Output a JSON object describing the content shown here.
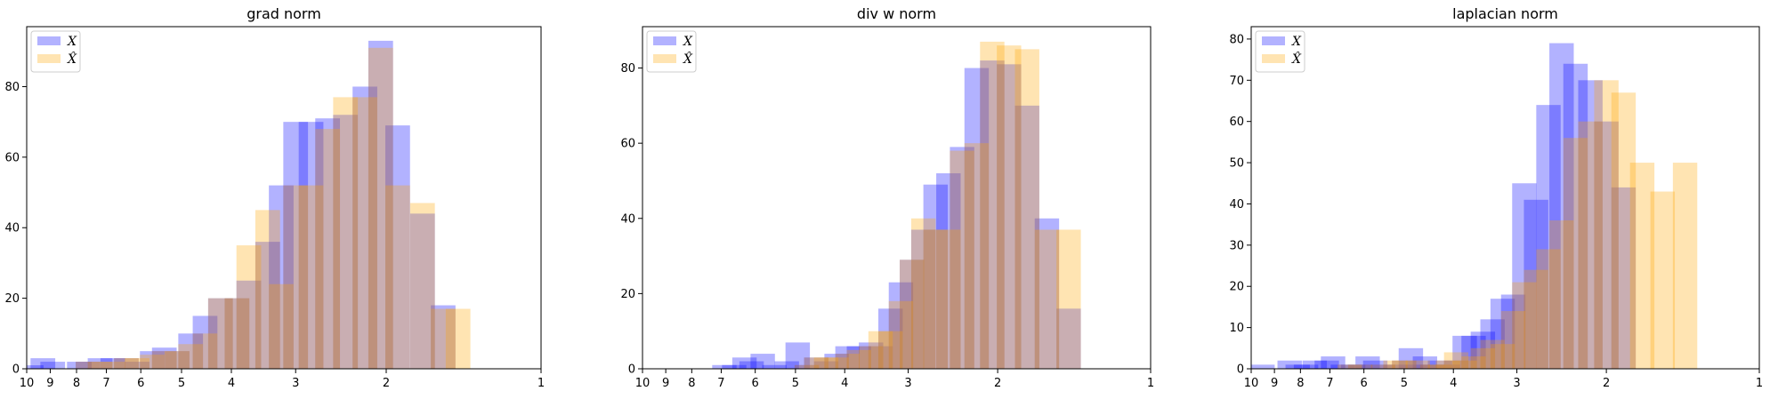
{
  "colors": {
    "x": "#0000ff",
    "xhat": "#ffa500",
    "x_opacity": 0.3,
    "xhat_opacity": 0.3
  },
  "chart_data": [
    {
      "type": "bar",
      "title": "grad norm",
      "xlabel": "",
      "ylabel": "",
      "x_scale": "log",
      "xlim": [
        10,
        1
      ],
      "xticks": [
        10,
        9,
        8,
        7,
        6,
        5,
        4,
        3,
        2,
        1
      ],
      "ylim": [
        0,
        97
      ],
      "yticks": [
        0,
        20,
        40,
        60,
        80
      ],
      "legend": {
        "position": "top-left",
        "entries": [
          "X",
          "X̂"
        ]
      },
      "series": [
        {
          "name": "X",
          "bins": [
            [
              9.8,
              1
            ],
            [
              9.3,
              3
            ],
            [
              8.9,
              2
            ],
            [
              7.9,
              2
            ],
            [
              7.6,
              2
            ],
            [
              7.2,
              3
            ],
            [
              6.8,
              3
            ],
            [
              6.4,
              3
            ],
            [
              6.1,
              2
            ],
            [
              5.7,
              5
            ],
            [
              5.4,
              6
            ],
            [
              5.1,
              5
            ],
            [
              4.8,
              10
            ],
            [
              4.5,
              15
            ],
            [
              4.2,
              20
            ],
            [
              3.9,
              20
            ],
            [
              3.7,
              25
            ],
            [
              3.4,
              36
            ],
            [
              3.2,
              52
            ],
            [
              3.0,
              70
            ],
            [
              2.8,
              70
            ],
            [
              2.6,
              71
            ],
            [
              2.4,
              72
            ],
            [
              2.2,
              80
            ],
            [
              2.05,
              93
            ],
            [
              1.9,
              69
            ],
            [
              1.7,
              44
            ],
            [
              1.55,
              18
            ]
          ]
        },
        {
          "name": "X̂",
          "bins": [
            [
              7.6,
              2
            ],
            [
              7.2,
              2
            ],
            [
              6.8,
              2
            ],
            [
              6.4,
              3
            ],
            [
              6.1,
              3
            ],
            [
              5.7,
              4
            ],
            [
              5.4,
              5
            ],
            [
              5.1,
              5
            ],
            [
              4.8,
              7
            ],
            [
              4.5,
              10
            ],
            [
              4.2,
              20
            ],
            [
              3.9,
              20
            ],
            [
              3.7,
              35
            ],
            [
              3.4,
              45
            ],
            [
              3.2,
              24
            ],
            [
              3.0,
              52
            ],
            [
              2.8,
              52
            ],
            [
              2.6,
              68
            ],
            [
              2.4,
              77
            ],
            [
              2.2,
              77
            ],
            [
              2.05,
              91
            ],
            [
              1.9,
              52
            ],
            [
              1.7,
              47
            ],
            [
              1.55,
              17
            ],
            [
              1.45,
              17
            ]
          ]
        }
      ]
    },
    {
      "type": "bar",
      "title": "div w norm",
      "xlabel": "",
      "ylabel": "",
      "x_scale": "log",
      "xlim": [
        10,
        1
      ],
      "xticks": [
        10,
        9,
        8,
        7,
        6,
        5,
        4,
        3,
        2,
        1
      ],
      "ylim": [
        0,
        91
      ],
      "yticks": [
        0,
        20,
        40,
        60,
        80
      ],
      "legend": {
        "position": "top-left",
        "entries": [
          "X",
          "X̂"
        ]
      },
      "series": [
        {
          "name": "X",
          "bins": [
            [
              6.9,
              1
            ],
            [
              6.6,
              1
            ],
            [
              6.3,
              3
            ],
            [
              6.1,
              2
            ],
            [
              5.8,
              4
            ],
            [
              5.5,
              1
            ],
            [
              5.2,
              2
            ],
            [
              4.95,
              7
            ],
            [
              4.75,
              1
            ],
            [
              4.55,
              3
            ],
            [
              4.35,
              2
            ],
            [
              4.15,
              4
            ],
            [
              3.95,
              6
            ],
            [
              3.75,
              6
            ],
            [
              3.55,
              7
            ],
            [
              3.4,
              6
            ],
            [
              3.25,
              16
            ],
            [
              3.1,
              23
            ],
            [
              2.95,
              29
            ],
            [
              2.8,
              37
            ],
            [
              2.65,
              49
            ],
            [
              2.5,
              52
            ],
            [
              2.35,
              59
            ],
            [
              2.2,
              80
            ],
            [
              2.05,
              82
            ],
            [
              1.9,
              81
            ],
            [
              1.75,
              70
            ],
            [
              1.6,
              40
            ],
            [
              1.45,
              16
            ]
          ]
        },
        {
          "name": "X̂",
          "bins": [
            [
              4.75,
              1
            ],
            [
              4.55,
              3
            ],
            [
              4.35,
              3
            ],
            [
              4.15,
              3
            ],
            [
              3.95,
              4
            ],
            [
              3.75,
              5
            ],
            [
              3.55,
              6
            ],
            [
              3.4,
              10
            ],
            [
              3.25,
              10
            ],
            [
              3.1,
              18
            ],
            [
              2.95,
              29
            ],
            [
              2.8,
              40
            ],
            [
              2.65,
              37
            ],
            [
              2.5,
              37
            ],
            [
              2.35,
              58
            ],
            [
              2.2,
              60
            ],
            [
              2.05,
              87
            ],
            [
              1.9,
              86
            ],
            [
              1.75,
              85
            ],
            [
              1.6,
              37
            ],
            [
              1.45,
              37
            ]
          ]
        }
      ]
    },
    {
      "type": "bar",
      "title": "laplacian norm",
      "xlabel": "",
      "ylabel": "",
      "x_scale": "log",
      "xlim": [
        10,
        1
      ],
      "xticks": [
        10,
        9,
        8,
        7,
        6,
        5,
        4,
        3,
        2,
        1
      ],
      "ylim": [
        0,
        83
      ],
      "yticks": [
        0,
        10,
        20,
        30,
        40,
        50,
        60,
        70,
        80
      ],
      "legend": {
        "position": "top-left",
        "entries": [
          "X",
          "X̂"
        ]
      },
      "series": [
        {
          "name": "X",
          "bins": [
            [
              9.5,
              1
            ],
            [
              8.4,
              2
            ],
            [
              8.1,
              1
            ],
            [
              7.8,
              1
            ],
            [
              7.5,
              2
            ],
            [
              7.1,
              2
            ],
            [
              6.9,
              3
            ],
            [
              6.6,
              1
            ],
            [
              6.3,
              1
            ],
            [
              6.1,
              1
            ],
            [
              5.9,
              3
            ],
            [
              5.7,
              2
            ],
            [
              5.5,
              1
            ],
            [
              5.2,
              1
            ],
            [
              5.0,
              2
            ],
            [
              4.85,
              5
            ],
            [
              4.7,
              1
            ],
            [
              4.55,
              3
            ],
            [
              4.4,
              1
            ],
            [
              4.25,
              2
            ],
            [
              4.1,
              1
            ],
            [
              3.95,
              2
            ],
            [
              3.8,
              8
            ],
            [
              3.65,
              8
            ],
            [
              3.5,
              9
            ],
            [
              3.35,
              12
            ],
            [
              3.2,
              17
            ],
            [
              3.05,
              18
            ],
            [
              2.9,
              45
            ],
            [
              2.75,
              41
            ],
            [
              2.6,
              64
            ],
            [
              2.45,
              79
            ],
            [
              2.3,
              74
            ],
            [
              2.15,
              70
            ],
            [
              2.0,
              60
            ],
            [
              1.85,
              44
            ]
          ]
        },
        {
          "name": "X̂",
          "bins": [
            [
              6.4,
              1
            ],
            [
              6.1,
              1
            ],
            [
              5.5,
              1
            ],
            [
              5.2,
              2
            ],
            [
              5.0,
              2
            ],
            [
              4.7,
              2
            ],
            [
              4.4,
              1
            ],
            [
              4.25,
              1
            ],
            [
              4.1,
              2
            ],
            [
              3.95,
              4
            ],
            [
              3.8,
              2
            ],
            [
              3.65,
              3
            ],
            [
              3.5,
              5
            ],
            [
              3.35,
              7
            ],
            [
              3.2,
              6
            ],
            [
              3.05,
              14
            ],
            [
              2.9,
              21
            ],
            [
              2.75,
              24
            ],
            [
              2.6,
              29
            ],
            [
              2.45,
              36
            ],
            [
              2.3,
              56
            ],
            [
              2.15,
              60
            ],
            [
              2.0,
              70
            ],
            [
              1.85,
              67
            ],
            [
              1.7,
              50
            ],
            [
              1.55,
              43
            ],
            [
              1.4,
              50
            ]
          ]
        }
      ]
    }
  ]
}
